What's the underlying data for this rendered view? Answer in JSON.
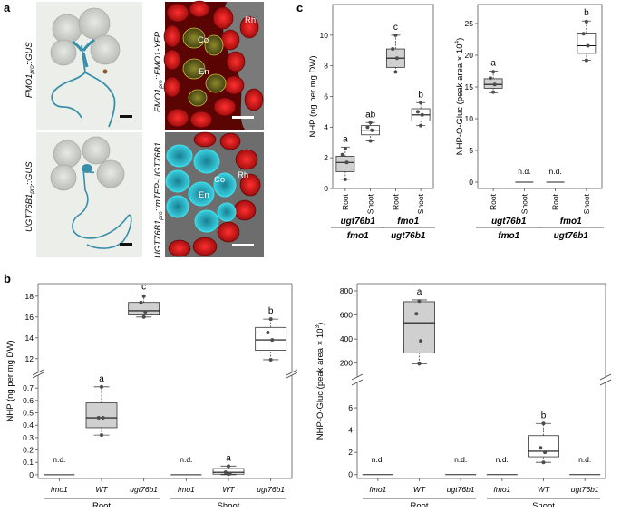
{
  "panel_labels": {
    "a": "a",
    "b": "b",
    "c": "c"
  },
  "panel_a": {
    "images": [
      {
        "label_pre": "FMO1",
        "label_sub": "pro",
        "label_post": "::GUS"
      },
      {
        "label_pre": "FMO1",
        "label_sub": "pro",
        "label_post": "::FMO1-YFP",
        "tags": [
          "Co",
          "Rh",
          "En"
        ]
      },
      {
        "label_pre": "UGT76B1",
        "label_sub": "pro",
        "label_post": "::GUS"
      },
      {
        "label_pre": "UGT76B1",
        "label_sub": "pro",
        "label_post": "::mTFP-UGT76B1",
        "tags": [
          "Rh",
          "Co",
          "En"
        ]
      }
    ],
    "colors": {
      "gus_stain": "#3a8fa8",
      "yfp_red": "#c81616",
      "mtfp_cyan": "#3fd6e6"
    }
  },
  "chart_data": [
    {
      "id": "c-left",
      "type": "box",
      "ylabel": "NHP (ng per mg DW)",
      "ylim": [
        0,
        12
      ],
      "yticks": [
        0,
        2,
        4,
        6,
        8,
        10
      ],
      "categories": [
        "Root",
        "Shoot",
        "Root",
        "Shoot"
      ],
      "groups": [
        {
          "genotype1": "ugt76b1",
          "genotype2": "fmo1"
        },
        {
          "genotype1": "fmo1",
          "genotype2": "ugt76b1"
        }
      ],
      "boxes": [
        {
          "q1": 1.1,
          "median": 1.7,
          "q3": 2.1,
          "whisker_low": 0.6,
          "whisker_high": 2.7,
          "points": [
            0.6,
            1.7,
            2.2,
            2.6
          ],
          "letter": "a",
          "fill": "#d0d0d0"
        },
        {
          "q1": 3.5,
          "median": 3.8,
          "q3": 4.1,
          "whisker_low": 3.1,
          "whisker_high": 4.3,
          "points": [
            3.1,
            3.8,
            4.0,
            4.3
          ],
          "letter": "ab",
          "fill": "#ffffff"
        },
        {
          "q1": 7.9,
          "median": 8.5,
          "q3": 9.1,
          "whisker_low": 7.6,
          "whisker_high": 10.0,
          "points": [
            7.6,
            8.5,
            9.1,
            10.0
          ],
          "letter": "c",
          "fill": "#d0d0d0"
        },
        {
          "q1": 4.4,
          "median": 4.8,
          "q3": 5.2,
          "whisker_low": 4.1,
          "whisker_high": 5.6,
          "points": [
            4.1,
            4.8,
            5.0,
            5.6
          ],
          "letter": "b",
          "fill": "#ffffff"
        }
      ]
    },
    {
      "id": "c-right",
      "type": "box",
      "ylabel_pre": "NHP-O-Gluc (peak area × 10",
      "ylabel_sup": "4",
      "ylabel_post": ")",
      "ylim": [
        -1,
        28
      ],
      "yticks": [
        0,
        5,
        10,
        15,
        20,
        25
      ],
      "categories": [
        "Root",
        "Shoot",
        "Root",
        "Shoot"
      ],
      "groups": [
        {
          "genotype1": "ugt76b1",
          "genotype2": "fmo1"
        },
        {
          "genotype1": "fmo1",
          "genotype2": "ugt76b1"
        }
      ],
      "boxes": [
        {
          "q1": 14.8,
          "median": 15.4,
          "q3": 16.3,
          "whisker_low": 14.1,
          "whisker_high": 17.5,
          "points": [
            14.2,
            15.4,
            16.4,
            17.4
          ],
          "letter": "a",
          "fill": "#d0d0d0"
        },
        {
          "nd": true,
          "label": "n.d."
        },
        {
          "nd": true,
          "label": "n.d."
        },
        {
          "q1": 20.3,
          "median": 21.5,
          "q3": 23.5,
          "whisker_low": 19.2,
          "whisker_high": 25.4,
          "points": [
            19.2,
            21.5,
            23.4,
            25.3
          ],
          "letter": "b",
          "fill": "#ffffff"
        }
      ]
    },
    {
      "id": "b-left",
      "type": "box",
      "broken_axis": true,
      "ylabel": "NHP (ng per mg DW)",
      "upper_ticks": [
        12,
        14,
        16,
        18
      ],
      "lower_ticks": [
        0,
        0.1,
        0.2,
        0.3,
        0.4,
        0.5,
        0.6,
        0.7
      ],
      "categories": [
        "fmo1",
        "WT",
        "ugt76b1",
        "fmo1",
        "WT",
        "ugt76b1"
      ],
      "groups": [
        "Root",
        "Shoot"
      ],
      "boxes": [
        {
          "nd": true,
          "label": "n.d."
        },
        {
          "q1": 0.38,
          "median": 0.46,
          "q3": 0.58,
          "whisker_low": 0.32,
          "whisker_high": 0.71,
          "points": [
            0.32,
            0.46,
            0.46,
            0.71
          ],
          "letter": "a",
          "fill": "#d0d0d0"
        },
        {
          "q1": 16.2,
          "median": 16.6,
          "q3": 17.4,
          "whisker_low": 16.0,
          "whisker_high": 18.1,
          "points": [
            16.0,
            16.5,
            17.4,
            18.0
          ],
          "letter": "c",
          "fill": "#d0d0d0"
        },
        {
          "nd": true,
          "label": "n.d."
        },
        {
          "q1": 0.005,
          "median": 0.02,
          "q3": 0.05,
          "whisker_low": 0.0,
          "whisker_high": 0.07,
          "points": [
            0.005,
            0.01,
            0.02,
            0.07
          ],
          "letter": "a",
          "fill": "#ffffff"
        },
        {
          "q1": 12.8,
          "median": 13.8,
          "q3": 15.0,
          "whisker_low": 11.9,
          "whisker_high": 15.8,
          "points": [
            11.9,
            13.8,
            14.5,
            15.8
          ],
          "letter": "b",
          "fill": "#ffffff"
        }
      ]
    },
    {
      "id": "b-right",
      "type": "box",
      "broken_axis": true,
      "ylabel_pre": "NHP-O-Gluc (peak area × 10",
      "ylabel_sup": "3",
      "ylabel_post": ")",
      "upper_ticks": [
        200,
        400,
        600,
        800
      ],
      "lower_ticks": [
        0,
        2,
        4,
        6
      ],
      "categories": [
        "fmo1",
        "WT",
        "ugt76b1",
        "fmo1",
        "WT",
        "ugt76b1"
      ],
      "groups": [
        "Root",
        "Shoot"
      ],
      "boxes": [
        {
          "nd": true,
          "label": "n.d."
        },
        {
          "q1": 285,
          "median": 535,
          "q3": 710,
          "whisker_low": 195,
          "whisker_high": 725,
          "points": [
            195,
            385,
            610,
            715
          ],
          "letter": "a",
          "fill": "#d0d0d0"
        },
        {
          "nd": true,
          "label": "n.d."
        },
        {
          "nd": true,
          "label": "n.d."
        },
        {
          "q1": 1.6,
          "median": 2.1,
          "q3": 3.5,
          "whisker_low": 1.1,
          "whisker_high": 4.6,
          "points": [
            1.1,
            2.0,
            2.4,
            4.6
          ],
          "letter": "b",
          "fill": "#ffffff"
        },
        {
          "nd": true,
          "label": "n.d."
        }
      ]
    }
  ]
}
